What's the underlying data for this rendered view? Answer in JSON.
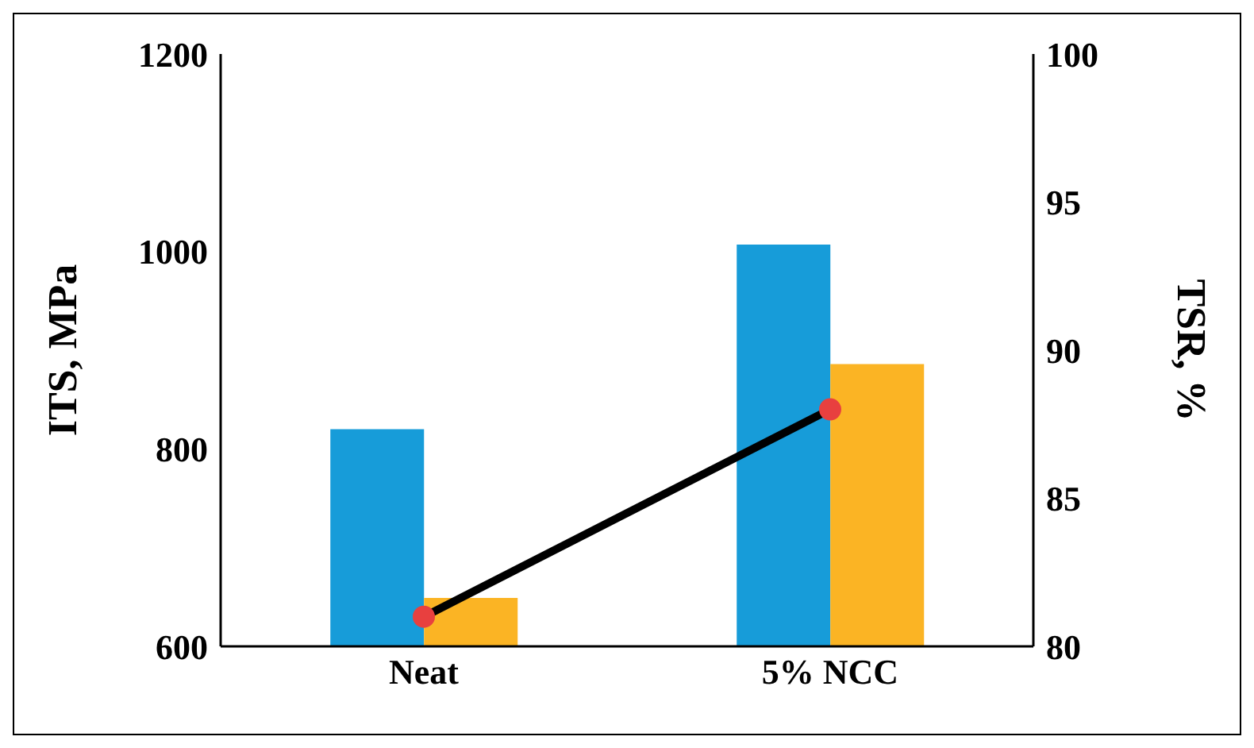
{
  "chart_data": {
    "type": "bar",
    "ylabel": "ITS, MPa",
    "y2label": "TSR, %",
    "categories": [
      "Neat",
      "5% NCC"
    ],
    "series": [
      {
        "color": "#179cd9",
        "values": [
          820,
          1007
        ]
      },
      {
        "color": "#fbb424",
        "values": [
          649,
          886
        ]
      },
      {
        "type": "line",
        "axis": "y2",
        "color": "#000000",
        "colors": [
          "#e8403f",
          "#e8403f"
        ],
        "marker": "circle",
        "line_style": "solid",
        "values": [
          81,
          88
        ]
      }
    ],
    "ylim": [
      600,
      1200
    ],
    "yticks": [
      600,
      800,
      1000,
      1200
    ],
    "y2lim": [
      80,
      100
    ],
    "y2ticks": [
      80,
      85,
      90,
      95,
      100
    ],
    "grid": false,
    "legend": false
  }
}
